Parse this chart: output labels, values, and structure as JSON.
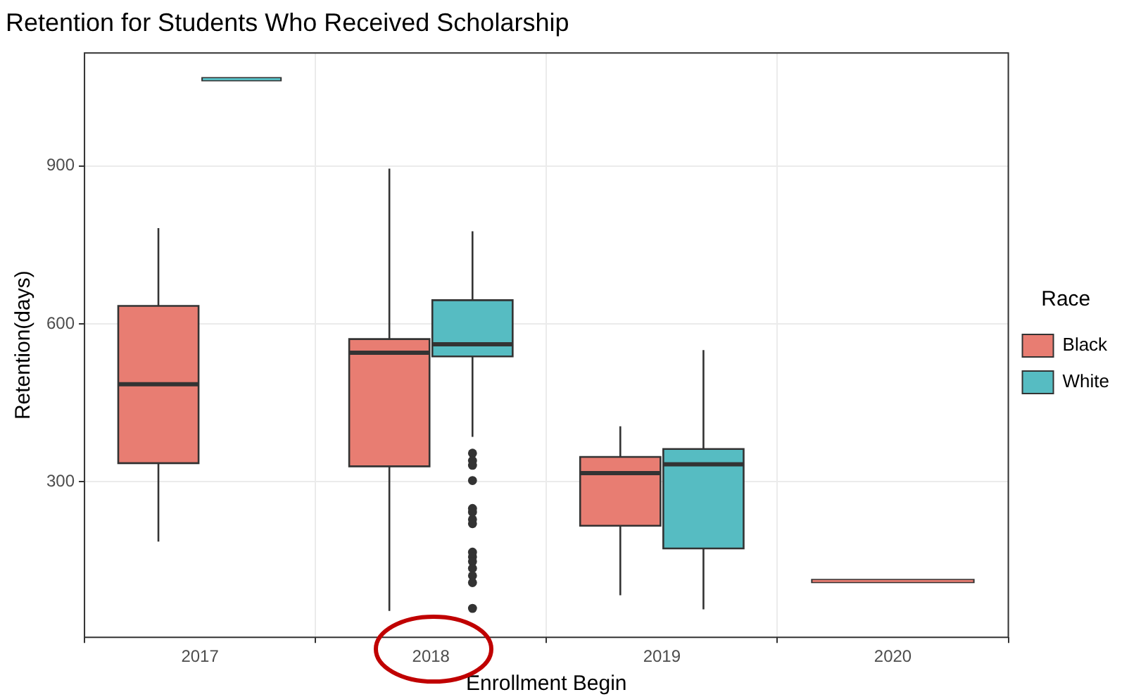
{
  "chart_data": {
    "type": "box",
    "title": "Retention for Students Who Received Scholarship",
    "xlabel": "Enrollment Begin",
    "ylabel": "Retention(days)",
    "legend_title": "Race",
    "legend": "right",
    "grid": true,
    "categories": [
      "2017",
      "2018",
      "2019",
      "2020"
    ],
    "ylim": [
      4,
      1115
    ],
    "yticks": [
      300,
      600,
      900
    ],
    "series": [
      {
        "name": "Black",
        "color": "#e87d72",
        "boxes": [
          {
            "low": 186,
            "q1": 335,
            "median": 485,
            "q3": 634,
            "high": 782
          },
          {
            "low": 54,
            "q1": 329,
            "median": 545,
            "q3": 571,
            "high": 895
          },
          {
            "low": 84,
            "q1": 216,
            "median": 316,
            "q3": 347,
            "high": 405
          },
          {
            "low": 111,
            "q1": 111,
            "median": 111,
            "q3": 111,
            "high": 111
          }
        ]
      },
      {
        "name": "White",
        "color": "#56bcc2",
        "boxes": [
          {
            "low": 1065,
            "q1": 1065,
            "median": 1065,
            "q3": 1065,
            "high": 1065
          },
          {
            "low": 385,
            "q1": 538,
            "median": 561,
            "q3": 645,
            "high": 776,
            "outliers": [
              354,
              340,
              331,
              302,
              249,
              242,
              228,
              220,
              166,
              157,
              148,
              135,
              121,
              108,
              59
            ]
          },
          {
            "low": 57,
            "q1": 173,
            "median": 333,
            "q3": 362,
            "high": 550
          },
          null
        ]
      }
    ]
  }
}
